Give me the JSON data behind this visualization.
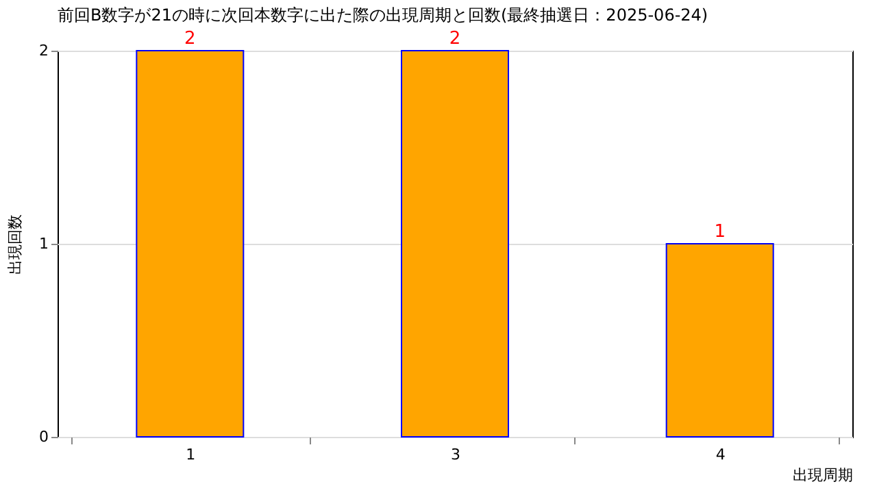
{
  "chart_data": {
    "type": "bar",
    "title": "前回B数字が21の時に次回本数字に出た際の出現周期と回数(最終抽選日：2025-06-24)",
    "xlabel": "出現周期",
    "ylabel": "出現回数",
    "categories": [
      "1",
      "3",
      "4"
    ],
    "values": [
      2,
      2,
      1
    ],
    "color": "#ffa500",
    "ylim": [
      0,
      2
    ],
    "yticks": [
      0,
      1,
      2
    ],
    "grid": "y",
    "data_labels": true
  }
}
